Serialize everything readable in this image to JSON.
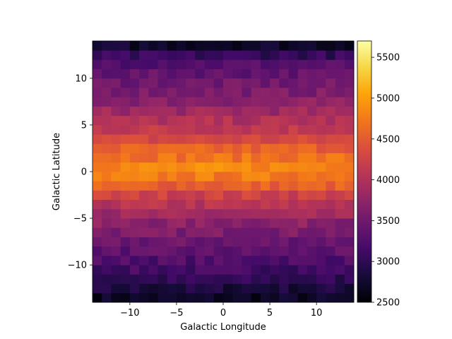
{
  "chart_data": {
    "type": "heatmap",
    "title": "",
    "xlabel": "Galactic Longitude",
    "ylabel": "Galactic Latitude",
    "xlim": [
      -14,
      14
    ],
    "ylim": [
      -14,
      14
    ],
    "xticks": [
      {
        "value": -10,
        "label": "−10"
      },
      {
        "value": -5,
        "label": "−5"
      },
      {
        "value": 0,
        "label": "0"
      },
      {
        "value": 5,
        "label": "5"
      },
      {
        "value": 10,
        "label": "10"
      }
    ],
    "yticks": [
      {
        "value": -10,
        "label": "−10"
      },
      {
        "value": -5,
        "label": "−5"
      },
      {
        "value": 0,
        "label": "0"
      },
      {
        "value": 5,
        "label": "5"
      },
      {
        "value": 10,
        "label": "10"
      }
    ],
    "grid": {
      "x_bins": 28,
      "y_bins": 28,
      "bin_size": 1
    },
    "profile_b": [
      -14,
      -13,
      -12,
      -11,
      -10,
      -9,
      -8,
      -7,
      -6,
      -5,
      -4,
      -3,
      -2,
      -1,
      0,
      1,
      2,
      3,
      4,
      5,
      6,
      7,
      8,
      9,
      10,
      11,
      12,
      13
    ],
    "profile_values": [
      2700,
      2850,
      3000,
      3150,
      3250,
      3350,
      3450,
      3600,
      3700,
      3850,
      4050,
      4250,
      4550,
      4750,
      4850,
      4700,
      4550,
      4300,
      4150,
      4000,
      3850,
      3700,
      3600,
      3500,
      3400,
      3300,
      3050,
      2750
    ],
    "noise_amplitude": 150,
    "colorbar": {
      "colormap": "inferno",
      "vmin": 2500,
      "vmax": 5700,
      "ticks": [
        2500,
        3000,
        3500,
        4000,
        4500,
        5000,
        5500
      ],
      "tick_labels": [
        "2500",
        "3000",
        "3500",
        "4000",
        "4500",
        "5000",
        "5500"
      ]
    }
  }
}
